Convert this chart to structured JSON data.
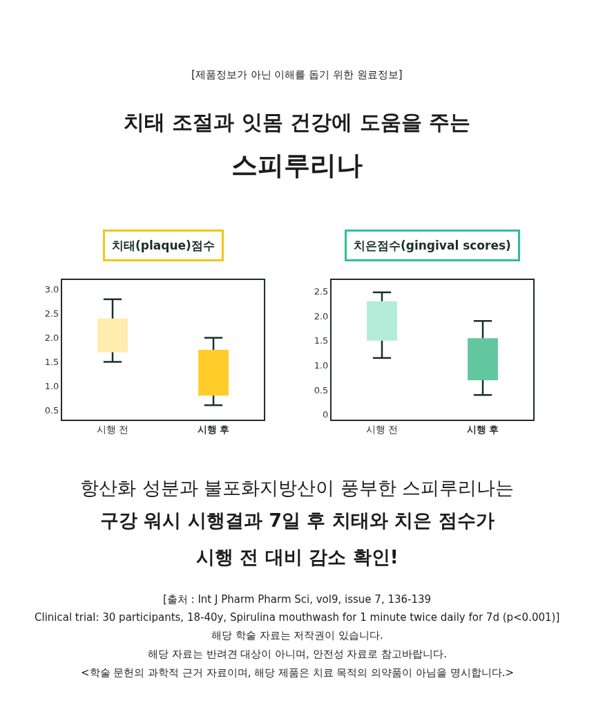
{
  "chart_data": [
    {
      "type": "box",
      "title": "치태(plaque)점수",
      "categories": [
        "시행 전",
        "시행 후"
      ],
      "boxes": [
        {
          "low": 1.5,
          "q1": 1.7,
          "q3": 2.4,
          "high": 2.8
        },
        {
          "low": 0.6,
          "q1": 0.8,
          "q3": 1.75,
          "high": 2.0
        }
      ],
      "colors": [
        "#ffecaf",
        "#ffcc2a"
      ],
      "ylim": [
        0.3,
        3.2
      ],
      "yticks": [
        {
          "value": 0.5,
          "label": "0.5"
        },
        {
          "value": 1,
          "label": "1.0"
        },
        1.5,
        {
          "value": 2,
          "label": "2.0"
        },
        2.5,
        {
          "value": 3,
          "label": "3.0"
        }
      ],
      "annotations": [
        "[제품정보가 아닌 이해를 돕기 위한 원료정보]",
        "치태 조절과 잇몸 건강에 도움을 주는",
        "스피루리나"
      ]
    },
    {
      "type": "box",
      "title": "치은점수(gingival scores)",
      "categories": [
        "시행 전",
        "시행 후"
      ],
      "boxes": [
        {
          "low": 1.15,
          "q1": 1.5,
          "q3": 2.3,
          "high": 2.48
        },
        {
          "low": 0.4,
          "q1": 0.7,
          "q3": 1.55,
          "high": 1.9
        }
      ],
      "colors": [
        "#b3ecd8",
        "#62c6a1"
      ],
      "ylim": [
        -0.1,
        2.73
      ],
      "yticks": [
        0,
        0.5,
        {
          "value": 1,
          "label": "1.0"
        },
        1.5,
        {
          "value": 2,
          "label": "2.0"
        },
        2.5
      ],
      "annotations": [
        "항산화 성분과 불포화지방산이 풍부한 스피루리나는",
        "구강 워시 시행결과 7일 후 치태와 치은 점수가",
        "시행 전 대비 감소 확인!",
        "[출처 : Int J Pharm Pharm Sci, vol9, issue 7, 136-139",
        "Clinical trial: 30 participants, 18-40y, Spirulina mouthwash for 1 minute twice daily for 7d (p<0.001)]",
        "해당 학술 자료는 저작권이 있습니다.",
        "해당 자료는 반려견 대상이 아니며, 안전성 자료로 참고바랍니다.",
        "<학술 문헌의 과학적 근거 자료이며, 해당 제품은 치료 목적의 의약품이 아님을 명시합니다.>"
      ]
    }
  ]
}
